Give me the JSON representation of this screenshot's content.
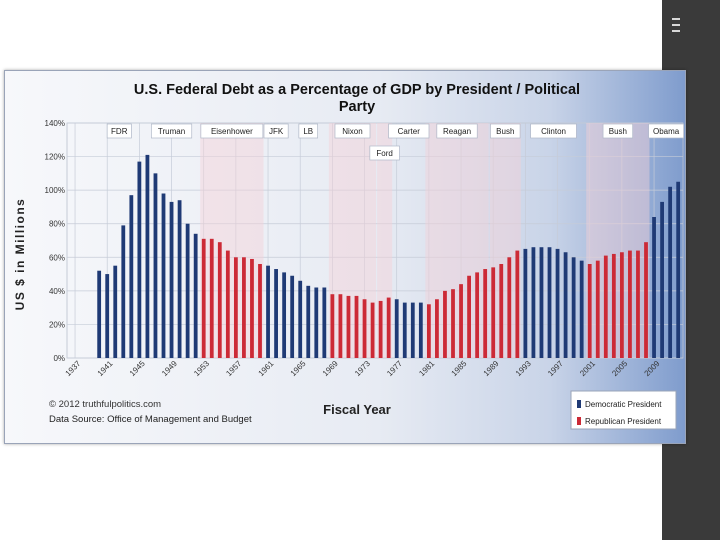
{
  "chart_data": {
    "type": "bar",
    "title": "U.S. Federal Debt as a Percentage of GDP by President / Political Party",
    "title_line1": "U.S. Federal Debt as a Percentage of GDP by President / Political",
    "title_line2": "Party",
    "xlabel": "Fiscal Year",
    "ylabel": "US $ in Millions",
    "ylim": [
      0,
      140
    ],
    "yticks": [
      "0%",
      "20%",
      "40%",
      "60%",
      "80%",
      "100%",
      "120%",
      "140%"
    ],
    "xticks": [
      "1937",
      "1941",
      "1945",
      "1949",
      "1953",
      "1957",
      "1961",
      "1965",
      "1969",
      "1973",
      "1977",
      "1981",
      "1985",
      "1989",
      "1993",
      "1997",
      "2001",
      "2005",
      "2009"
    ],
    "grid": true,
    "legend_position": "bottom-right",
    "colors": {
      "democratic": "#1f3a75",
      "republican": "#cc2a36"
    },
    "years": [
      1940,
      1941,
      1942,
      1943,
      1944,
      1945,
      1946,
      1947,
      1948,
      1949,
      1950,
      1951,
      1952,
      1953,
      1954,
      1955,
      1956,
      1957,
      1958,
      1959,
      1960,
      1961,
      1962,
      1963,
      1964,
      1965,
      1966,
      1967,
      1968,
      1969,
      1970,
      1971,
      1972,
      1973,
      1974,
      1975,
      1976,
      1977,
      1978,
      1979,
      1980,
      1981,
      1982,
      1983,
      1984,
      1985,
      1986,
      1987,
      1988,
      1989,
      1990,
      1991,
      1992,
      1993,
      1994,
      1995,
      1996,
      1997,
      1998,
      1999,
      2000,
      2001,
      2002,
      2003,
      2004,
      2005,
      2006,
      2007,
      2008,
      2009,
      2010,
      2011,
      2012
    ],
    "values": [
      52,
      50,
      55,
      79,
      97,
      117,
      121,
      110,
      98,
      93,
      94,
      80,
      74,
      71,
      71,
      69,
      64,
      60,
      60,
      59,
      56,
      55,
      53,
      51,
      49,
      46,
      43,
      42,
      42,
      38,
      38,
      37,
      37,
      35,
      33,
      34,
      36,
      35,
      33,
      33,
      33,
      32,
      35,
      40,
      41,
      44,
      49,
      51,
      53,
      54,
      56,
      60,
      64,
      65,
      66,
      66,
      66,
      65,
      63,
      60,
      58,
      56,
      58,
      61,
      62,
      63,
      64,
      64,
      69,
      84,
      93,
      102,
      105
    ],
    "party": [
      "D",
      "D",
      "D",
      "D",
      "D",
      "D",
      "D",
      "D",
      "D",
      "D",
      "D",
      "D",
      "D",
      "R",
      "R",
      "R",
      "R",
      "R",
      "R",
      "R",
      "R",
      "D",
      "D",
      "D",
      "D",
      "D",
      "D",
      "D",
      "D",
      "R",
      "R",
      "R",
      "R",
      "R",
      "R",
      "R",
      "R",
      "D",
      "D",
      "D",
      "D",
      "R",
      "R",
      "R",
      "R",
      "R",
      "R",
      "R",
      "R",
      "R",
      "R",
      "R",
      "R",
      "D",
      "D",
      "D",
      "D",
      "D",
      "D",
      "D",
      "D",
      "R",
      "R",
      "R",
      "R",
      "R",
      "R",
      "R",
      "R",
      "D",
      "D",
      "D",
      "D"
    ],
    "presidents": [
      {
        "name": "FDR",
        "party": "D",
        "first": 1940,
        "last": 1945
      },
      {
        "name": "Truman",
        "party": "D",
        "first": 1946,
        "last": 1952
      },
      {
        "name": "Eisenhower",
        "party": "R",
        "first": 1953,
        "last": 1960
      },
      {
        "name": "JFK",
        "party": "D",
        "first": 1961,
        "last": 1963
      },
      {
        "name": "LB",
        "party": "D",
        "first": 1964,
        "last": 1968
      },
      {
        "name": "Nixon",
        "party": "R",
        "first": 1969,
        "last": 1974
      },
      {
        "name": "Ford",
        "party": "R",
        "first": 1975,
        "last": 1976
      },
      {
        "name": "Carter",
        "party": "D",
        "first": 1977,
        "last": 1980
      },
      {
        "name": "Reagan",
        "party": "R",
        "first": 1981,
        "last": 1988
      },
      {
        "name": "Bush",
        "party": "R",
        "first": 1989,
        "last": 1992
      },
      {
        "name": "Clinton",
        "party": "D",
        "first": 1993,
        "last": 2000
      },
      {
        "name": "Bush",
        "party": "R",
        "first": 2001,
        "last": 2008
      },
      {
        "name": "Obama",
        "party": "D",
        "first": 2009,
        "last": 2012
      }
    ],
    "legend": [
      "Democratic President",
      "Republican President"
    ],
    "copyright": "© 2012 truthfulpolitics.com",
    "source": "Data Source: Office of Management and Budget"
  }
}
